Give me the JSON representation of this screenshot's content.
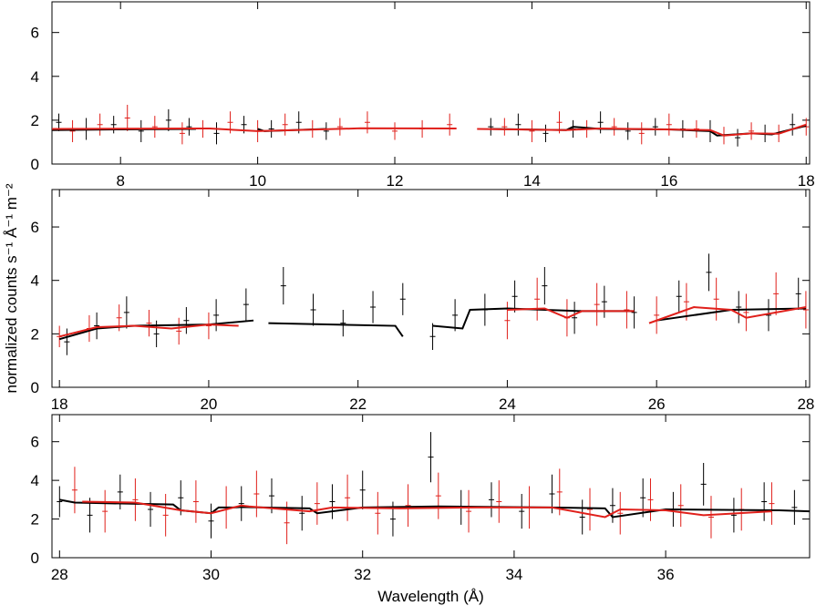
{
  "chart_data": [
    {
      "type": "errorbar",
      "xlim": [
        7,
        18.05
      ],
      "ylim": [
        0,
        7.4
      ],
      "xticks": [
        8,
        10,
        12,
        14,
        16,
        18
      ],
      "yticks": [
        0,
        2,
        4,
        6
      ],
      "series": [
        {
          "style": "errorbar",
          "color": "#000000",
          "x": [
            7.1,
            7.5,
            7.9,
            8.3,
            8.7,
            9.0,
            9.4,
            9.8,
            10.2,
            10.6,
            11.0,
            13.4,
            13.8,
            14.2,
            14.6,
            15.0,
            15.4,
            15.8,
            16.2,
            16.6,
            17.0,
            17.4,
            17.8
          ],
          "values": [
            1.9,
            1.6,
            1.8,
            1.5,
            2.0,
            1.7,
            1.4,
            1.8,
            1.6,
            1.9,
            1.5,
            1.7,
            1.8,
            1.4,
            1.6,
            1.9,
            1.5,
            1.7,
            1.6,
            1.5,
            1.2,
            1.4,
            1.8
          ],
          "errors": [
            0.4,
            0.5,
            0.4,
            0.5,
            0.5,
            0.4,
            0.5,
            0.4,
            0.4,
            0.5,
            0.4,
            0.4,
            0.5,
            0.4,
            0.4,
            0.5,
            0.4,
            0.4,
            0.4,
            0.5,
            0.4,
            0.4,
            0.5
          ]
        },
        {
          "style": "errorbar",
          "color": "#e0201b",
          "x": [
            7.3,
            7.7,
            8.1,
            8.5,
            8.9,
            9.2,
            9.6,
            10.0,
            10.4,
            10.8,
            11.2,
            11.6,
            12.0,
            12.4,
            12.8,
            13.6,
            14.0,
            14.4,
            14.8,
            15.2,
            15.6,
            16.0,
            16.4,
            16.8,
            17.2,
            17.6,
            18.0
          ],
          "values": [
            1.5,
            1.8,
            2.1,
            1.7,
            1.4,
            1.6,
            1.9,
            1.5,
            1.8,
            1.6,
            1.7,
            1.9,
            1.5,
            1.6,
            1.8,
            1.7,
            1.5,
            1.9,
            1.6,
            1.7,
            1.4,
            1.8,
            1.6,
            1.3,
            1.5,
            1.4,
            1.7
          ],
          "errors": [
            0.5,
            0.5,
            0.6,
            0.5,
            0.5,
            0.4,
            0.5,
            0.5,
            0.5,
            0.4,
            0.4,
            0.5,
            0.4,
            0.4,
            0.5,
            0.4,
            0.5,
            0.5,
            0.4,
            0.4,
            0.5,
            0.5,
            0.4,
            0.4,
            0.4,
            0.4,
            0.4
          ]
        },
        {
          "style": "line",
          "color": "#000000",
          "x": [
            7.0,
            8.0,
            9.1,
            9.2,
            10.0,
            10.1,
            11.0,
            11.1,
            13.4,
            14.5,
            14.6,
            15.0,
            16.0,
            16.6,
            16.7,
            17.2,
            17.5,
            18.0
          ],
          "values": [
            1.55,
            1.58,
            1.6,
            null,
            1.6,
            1.5,
            1.6,
            null,
            1.6,
            1.55,
            1.7,
            1.6,
            1.58,
            1.5,
            1.3,
            1.4,
            1.35,
            1.75
          ]
        },
        {
          "style": "line",
          "color": "#e0201b",
          "x": [
            7.0,
            9.0,
            9.3,
            10.0,
            11.5,
            12.9,
            13.0,
            13.2,
            14.5,
            15.0,
            16.6,
            16.8,
            17.2,
            17.6,
            18.0
          ],
          "values": [
            1.6,
            1.62,
            1.62,
            1.5,
            1.63,
            1.62,
            null,
            1.6,
            1.55,
            1.62,
            1.55,
            1.3,
            1.4,
            1.38,
            1.8
          ]
        }
      ]
    },
    {
      "type": "errorbar",
      "xlim": [
        17.9,
        28.05
      ],
      "ylim": [
        0,
        7.4
      ],
      "xticks": [
        18,
        20,
        22,
        24,
        26,
        28
      ],
      "yticks": [
        0,
        2,
        4,
        6
      ],
      "ylabel": "normalized counts s⁻¹ Å⁻¹ m⁻²",
      "series": [
        {
          "style": "errorbar",
          "color": "#000000",
          "x": [
            18.1,
            18.5,
            18.9,
            19.3,
            19.7,
            20.1,
            20.5,
            21.0,
            21.4,
            21.8,
            22.2,
            22.6,
            23.0,
            23.3,
            23.7,
            24.1,
            24.5,
            24.9,
            25.3,
            25.7,
            26.3,
            26.7,
            27.1,
            27.5,
            27.9
          ],
          "values": [
            1.7,
            2.3,
            2.8,
            2.0,
            2.5,
            2.7,
            3.1,
            3.8,
            2.9,
            2.4,
            3.0,
            3.3,
            1.9,
            2.7,
            2.9,
            3.4,
            3.8,
            2.6,
            3.2,
            2.8,
            3.4,
            4.3,
            3.0,
            2.7,
            3.5
          ],
          "errors": [
            0.5,
            0.5,
            0.6,
            0.5,
            0.5,
            0.6,
            0.6,
            0.7,
            0.6,
            0.5,
            0.6,
            0.6,
            0.5,
            0.6,
            0.6,
            0.6,
            0.7,
            0.6,
            0.6,
            0.6,
            0.6,
            0.7,
            0.6,
            0.6,
            0.6
          ]
        },
        {
          "style": "errorbar",
          "color": "#e0201b",
          "x": [
            18.0,
            18.4,
            18.8,
            19.2,
            19.6,
            20.0,
            24.0,
            24.4,
            24.8,
            25.2,
            25.6,
            26.0,
            26.4,
            26.8,
            27.2,
            27.6,
            28.0
          ],
          "values": [
            1.9,
            2.2,
            2.6,
            2.4,
            2.1,
            2.3,
            2.5,
            3.3,
            2.6,
            3.1,
            2.9,
            2.7,
            3.2,
            3.3,
            2.8,
            3.5,
            2.9
          ],
          "errors": [
            0.4,
            0.5,
            0.5,
            0.5,
            0.5,
            0.5,
            0.7,
            0.8,
            0.7,
            0.8,
            0.7,
            0.7,
            0.7,
            0.8,
            0.7,
            0.8,
            0.7
          ]
        },
        {
          "style": "line",
          "color": "#000000",
          "x": [
            18.0,
            18.5,
            19.0,
            20.0,
            20.6,
            20.7,
            20.8,
            22.5,
            22.6,
            22.7,
            23.0,
            23.4,
            23.5,
            24.0,
            25.0,
            25.7,
            25.8,
            26.0,
            27.0,
            28.0
          ],
          "values": [
            1.8,
            2.2,
            2.3,
            2.35,
            2.5,
            null,
            2.4,
            2.3,
            1.9,
            null,
            2.3,
            2.2,
            2.9,
            2.95,
            2.85,
            2.85,
            null,
            2.5,
            2.9,
            2.95
          ]
        },
        {
          "style": "line",
          "color": "#e0201b",
          "x": [
            18.0,
            18.5,
            19.0,
            19.5,
            20.0,
            20.4,
            20.5,
            24.0,
            24.5,
            24.8,
            25.0,
            25.7,
            25.8,
            25.9,
            26.5,
            27.0,
            27.2,
            28.0
          ],
          "values": [
            1.9,
            2.25,
            2.3,
            2.2,
            2.35,
            2.3,
            null,
            2.9,
            2.95,
            2.6,
            2.85,
            2.85,
            null,
            2.4,
            3.0,
            2.9,
            2.6,
            3.0
          ]
        }
      ]
    },
    {
      "type": "errorbar",
      "xlim": [
        27.9,
        37.9
      ],
      "ylim": [
        0,
        7.4
      ],
      "xticks": [
        28,
        30,
        32,
        34,
        36
      ],
      "yticks": [
        0,
        2,
        4,
        6
      ],
      "xlabel": "Wavelength (Å)",
      "series": [
        {
          "style": "errorbar",
          "color": "#000000",
          "x": [
            28.0,
            28.4,
            28.8,
            29.2,
            29.6,
            30.0,
            30.4,
            30.8,
            31.2,
            31.6,
            32.0,
            32.4,
            32.9,
            33.3,
            33.7,
            34.1,
            34.5,
            34.9,
            35.3,
            35.7,
            36.1,
            36.5,
            36.9,
            37.3,
            37.7
          ],
          "values": [
            2.9,
            2.2,
            3.4,
            2.5,
            3.1,
            1.9,
            2.8,
            3.2,
            2.3,
            2.9,
            3.5,
            2.0,
            5.2,
            2.6,
            3.0,
            2.4,
            3.3,
            2.1,
            2.7,
            3.1,
            2.5,
            3.8,
            2.2,
            2.9,
            2.6
          ],
          "errors": [
            0.8,
            0.9,
            0.9,
            0.9,
            0.9,
            0.9,
            0.9,
            0.9,
            0.9,
            0.9,
            1.0,
            0.9,
            1.3,
            0.9,
            0.9,
            0.9,
            1.0,
            0.9,
            0.9,
            1.0,
            0.9,
            1.1,
            0.9,
            1.0,
            0.9
          ]
        },
        {
          "style": "errorbar",
          "color": "#e0201b",
          "x": [
            28.2,
            28.6,
            29.0,
            29.4,
            29.8,
            30.2,
            30.6,
            31.0,
            31.4,
            31.8,
            32.2,
            32.6,
            33.0,
            33.4,
            33.8,
            34.2,
            34.6,
            35.0,
            35.4,
            35.8,
            36.2,
            36.6,
            37.0,
            37.4
          ],
          "values": [
            3.5,
            2.4,
            3.0,
            2.2,
            2.9,
            2.6,
            3.3,
            1.8,
            2.8,
            3.1,
            2.3,
            2.7,
            3.2,
            2.4,
            2.9,
            2.6,
            3.4,
            2.5,
            2.3,
            3.0,
            2.7,
            2.1,
            2.5,
            2.8
          ],
          "errors": [
            1.2,
            1.1,
            1.1,
            1.1,
            1.1,
            1.1,
            1.2,
            1.1,
            1.1,
            1.2,
            1.1,
            1.1,
            1.2,
            1.1,
            1.1,
            1.1,
            1.2,
            1.1,
            1.1,
            1.1,
            1.1,
            1.1,
            1.1,
            1.1
          ]
        },
        {
          "style": "line",
          "color": "#000000",
          "x": [
            28.0,
            28.2,
            29.5,
            29.6,
            30.0,
            30.1,
            30.3,
            30.4,
            31.3,
            31.4,
            32.0,
            33.0,
            34.5,
            35.2,
            35.3,
            36.0,
            37.5,
            37.9
          ],
          "values": [
            3.0,
            2.85,
            2.75,
            2.45,
            2.3,
            2.6,
            2.6,
            2.62,
            2.55,
            2.3,
            2.6,
            2.65,
            2.6,
            2.55,
            2.1,
            2.5,
            2.45,
            2.4
          ]
        },
        {
          "style": "line",
          "color": "#e0201b",
          "x": [
            28.3,
            29.0,
            29.6,
            30.0,
            30.4,
            30.5,
            31.3,
            31.6,
            32.5,
            33.5,
            34.5,
            35.2,
            35.4,
            36.0,
            36.5,
            37.4
          ],
          "values": [
            2.9,
            2.85,
            2.45,
            2.3,
            2.7,
            2.65,
            2.4,
            2.6,
            2.55,
            2.6,
            2.6,
            2.1,
            2.5,
            2.45,
            2.2,
            2.4
          ]
        }
      ]
    }
  ]
}
